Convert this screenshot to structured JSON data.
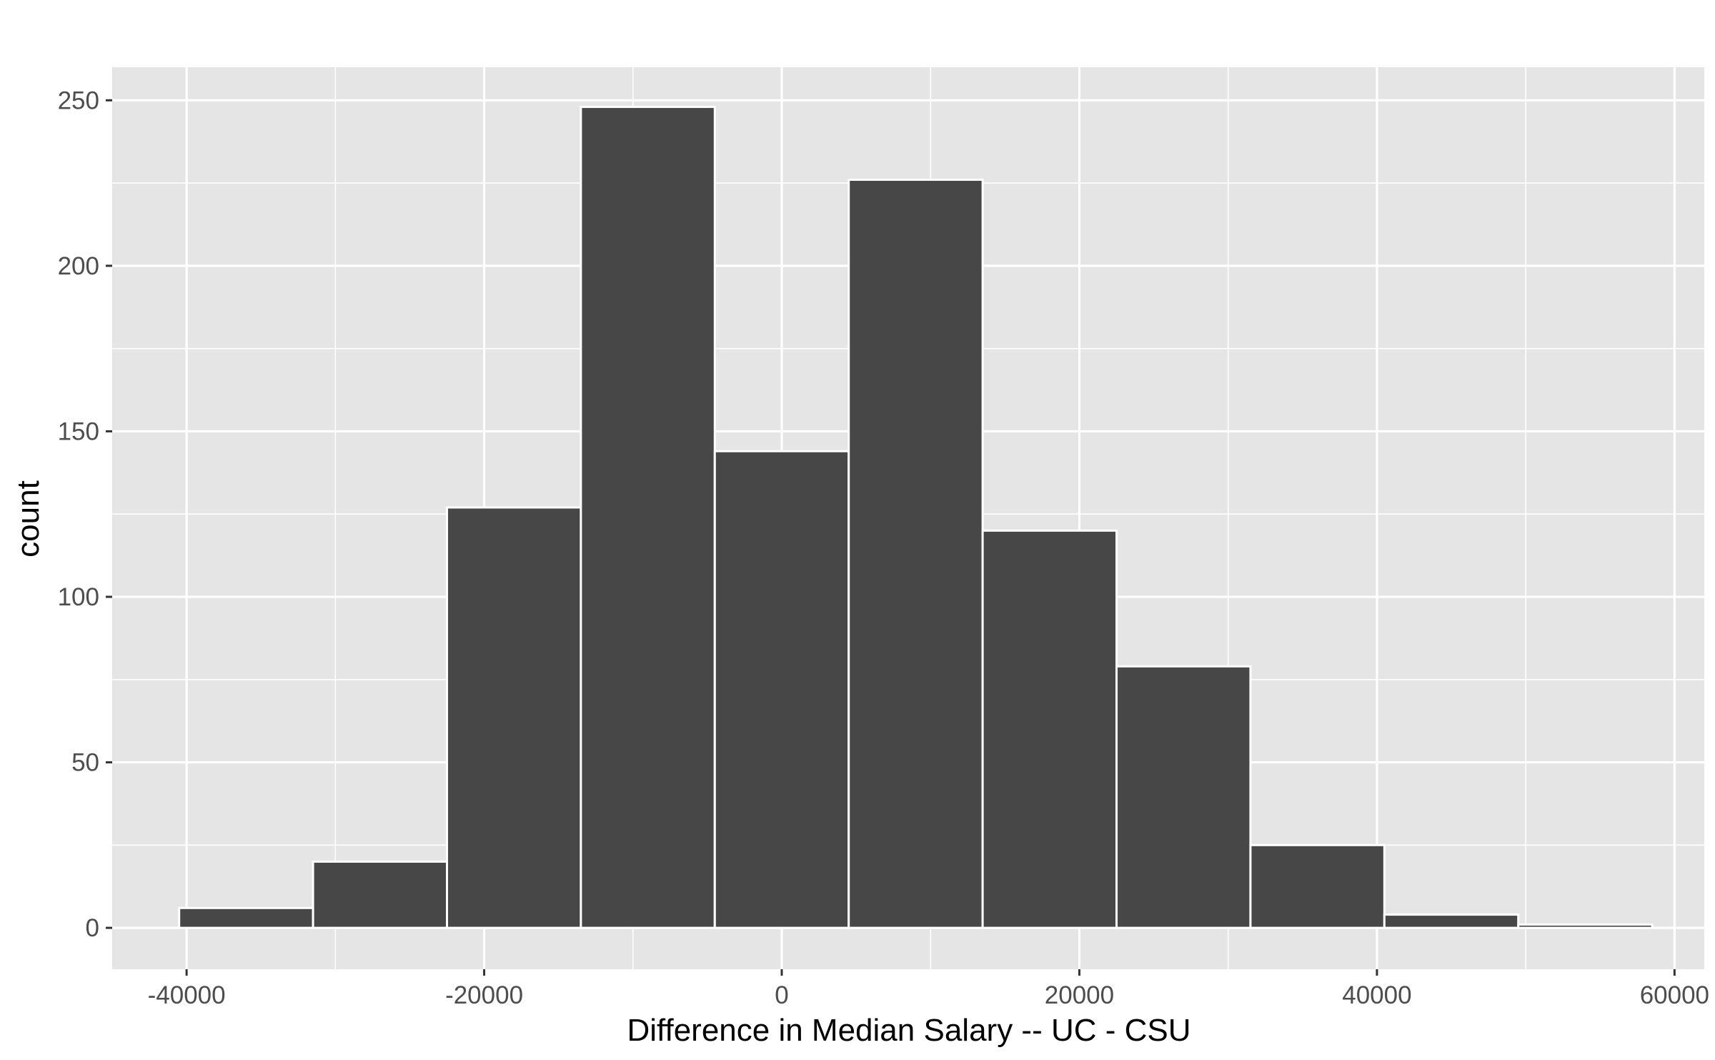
{
  "chart_data": {
    "type": "histogram",
    "title": "",
    "xlabel": "Difference in Median Salary -- UC - CSU",
    "ylabel": "count",
    "xlim": [
      -45000,
      62000
    ],
    "ylim": [
      -12.5,
      260
    ],
    "x_ticks": [
      -40000,
      -20000,
      0,
      20000,
      40000,
      60000
    ],
    "x_tick_labels": [
      "-40000",
      "-20000",
      "0",
      "20000",
      "40000",
      "60000"
    ],
    "x_minor_ticks": [
      -30000,
      -10000,
      10000,
      30000,
      50000
    ],
    "y_ticks": [
      0,
      50,
      100,
      150,
      200,
      250
    ],
    "y_tick_labels": [
      "0",
      "50",
      "100",
      "150",
      "200",
      "250"
    ],
    "y_minor_ticks": [
      25,
      75,
      125,
      175,
      225
    ],
    "bin_width": 9000,
    "bins": [
      {
        "x_start": -40500,
        "x_end": -31500,
        "count": 6
      },
      {
        "x_start": -31500,
        "x_end": -22500,
        "count": 20
      },
      {
        "x_start": -22500,
        "x_end": -13500,
        "count": 127
      },
      {
        "x_start": -13500,
        "x_end": -4500,
        "count": 248
      },
      {
        "x_start": -4500,
        "x_end": 4500,
        "count": 144
      },
      {
        "x_start": 4500,
        "x_end": 13500,
        "count": 226
      },
      {
        "x_start": 13500,
        "x_end": 22500,
        "count": 120
      },
      {
        "x_start": 22500,
        "x_end": 31500,
        "count": 79
      },
      {
        "x_start": 31500,
        "x_end": 40500,
        "count": 25
      },
      {
        "x_start": 40500,
        "x_end": 49500,
        "count": 4
      },
      {
        "x_start": 49500,
        "x_end": 58500,
        "count": 1
      }
    ],
    "grid": true,
    "colors": {
      "panel_background": "#e5e5e5",
      "grid": "#ffffff",
      "bar_fill": "#474747",
      "bar_outline": "#ffffff",
      "tick_label": "#4d4d4d",
      "tick_mark": "#333333",
      "axis_title": "#000000"
    }
  }
}
